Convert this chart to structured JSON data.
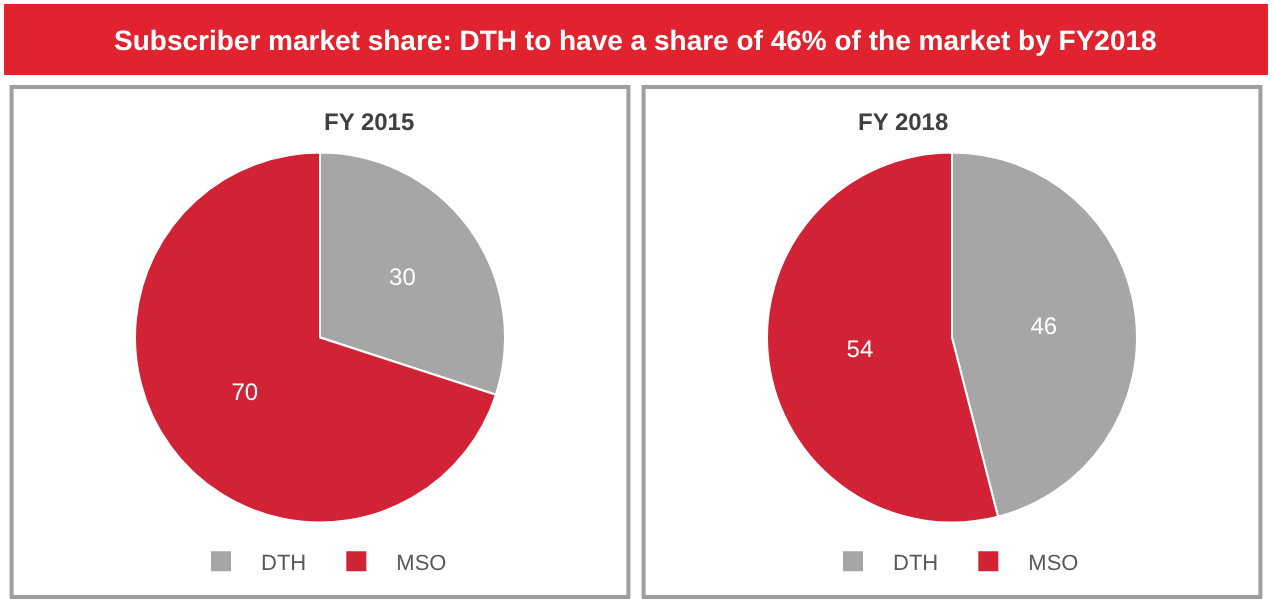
{
  "chart_data": [
    {
      "type": "other",
      "title": "Subscriber market share: DTH to have a share of 46% of the market by FY2018",
      "color": "#e0232f"
    },
    {
      "type": "pie",
      "title": "FY 2015",
      "categories": [
        "DTH",
        "MSO"
      ],
      "values": [
        30,
        70
      ],
      "colors": [
        "#a6a6a6",
        "#d12335"
      ],
      "data_labels": true,
      "legend": "bottom"
    },
    {
      "type": "pie",
      "title": "FY 2018",
      "categories": [
        "DTH",
        "MSO"
      ],
      "values": [
        46,
        54
      ],
      "colors": [
        "#a6a6a6",
        "#d12335"
      ],
      "data_labels": true,
      "legend": "bottom"
    }
  ]
}
